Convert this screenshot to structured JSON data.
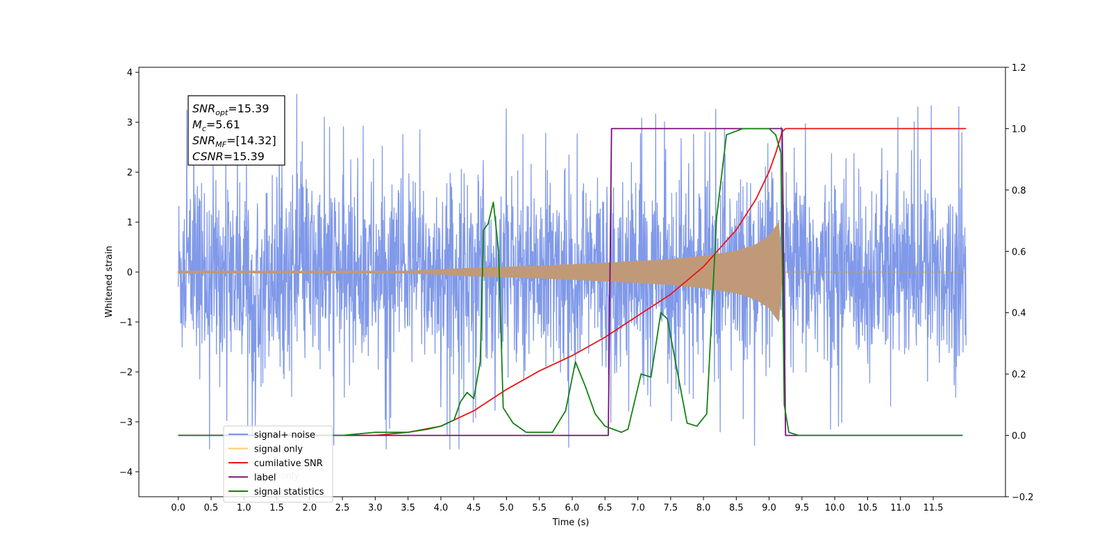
{
  "chart_data": {
    "type": "line",
    "xlabel": "Time (s)",
    "ylabel": "Whitened strain",
    "xlim": [
      -0.6,
      12.6
    ],
    "ylim": [
      -4.5,
      4.1
    ],
    "y2lim": [
      -0.2,
      1.2
    ],
    "x_ticks": [
      0.0,
      0.5,
      1.0,
      1.5,
      2.0,
      2.5,
      3.0,
      3.5,
      4.0,
      4.5,
      5.0,
      5.5,
      6.0,
      6.5,
      7.0,
      7.5,
      8.0,
      8.5,
      9.0,
      9.5,
      10.0,
      10.5,
      11.0,
      11.5
    ],
    "x_tick_labels": [
      "0.0",
      "0.5",
      "1.0",
      "1.5",
      "2.0",
      "2.5",
      "3.0",
      "3.5",
      "4.0",
      "4.5",
      "5.0",
      "5.5",
      "6.0",
      "6.5",
      "7.0",
      "7.5",
      "8.0",
      "8.5",
      "9.0",
      "9.5",
      "10.0",
      "10.5",
      "11.0",
      "11.5"
    ],
    "y_ticks": [
      -4,
      -3,
      -2,
      -1,
      0,
      1,
      2,
      3,
      4
    ],
    "y_tick_labels": [
      "−4",
      "−3",
      "−2",
      "−1",
      "0",
      "1",
      "2",
      "3",
      "4"
    ],
    "y2_ticks": [
      -0.2,
      0.0,
      0.2,
      0.4,
      0.6,
      0.8,
      1.0,
      1.2
    ],
    "y2_tick_labels": [
      "−0.2",
      "0.0",
      "0.2",
      "0.4",
      "0.6",
      "0.8",
      "1.0",
      "1.2"
    ],
    "grid": false,
    "legend_position": "lower-left",
    "annotation": {
      "lines": [
        {
          "label": "SNR",
          "sub": "opt",
          "value": "=15.39"
        },
        {
          "label": "M",
          "sub": "c",
          "value": "=5.61"
        },
        {
          "label": "SNR",
          "sub": "MF",
          "value": "=[14.32]"
        },
        {
          "label": "CSNR",
          "sub": "",
          "value": "=15.39"
        }
      ]
    },
    "series": [
      {
        "name": "signal+ noise",
        "color": "#7994e8",
        "axis": "left",
        "kind": "noise",
        "t_range": [
          0.0,
          12.0
        ],
        "noise_band": [
          -1.6,
          1.6
        ],
        "y_extent": [
          -3.55,
          3.65
        ]
      },
      {
        "name": "signal only",
        "color": "#c09a78",
        "axis": "left",
        "kind": "chirp",
        "envelope": [
          [
            0.0,
            0.02
          ],
          [
            3.5,
            0.02
          ],
          [
            4.5,
            0.08
          ],
          [
            5.5,
            0.12
          ],
          [
            6.5,
            0.18
          ],
          [
            7.5,
            0.25
          ],
          [
            8.0,
            0.32
          ],
          [
            8.5,
            0.42
          ],
          [
            8.8,
            0.55
          ],
          [
            9.0,
            0.72
          ],
          [
            9.15,
            1.0
          ],
          [
            9.2,
            0.0
          ],
          [
            12.0,
            0.0
          ]
        ]
      },
      {
        "name": "cumilative SNR",
        "color": "#ee1111",
        "axis": "right",
        "points": [
          [
            0.0,
            0.0
          ],
          [
            3.0,
            0.0
          ],
          [
            3.5,
            0.01
          ],
          [
            4.0,
            0.03
          ],
          [
            4.5,
            0.08
          ],
          [
            5.0,
            0.15
          ],
          [
            5.5,
            0.21
          ],
          [
            6.0,
            0.26
          ],
          [
            6.5,
            0.32
          ],
          [
            7.0,
            0.39
          ],
          [
            7.5,
            0.46
          ],
          [
            8.0,
            0.55
          ],
          [
            8.5,
            0.67
          ],
          [
            8.8,
            0.77
          ],
          [
            9.0,
            0.86
          ],
          [
            9.1,
            0.92
          ],
          [
            9.2,
            0.99
          ],
          [
            9.25,
            1.0
          ],
          [
            12.0,
            1.0
          ]
        ]
      },
      {
        "name": "label",
        "color": "#7b0c7b",
        "axis": "right",
        "points": [
          [
            0.0,
            0.0
          ],
          [
            6.55,
            0.0
          ],
          [
            6.6,
            1.0
          ],
          [
            9.2,
            1.0
          ],
          [
            9.25,
            0.0
          ],
          [
            11.95,
            0.0
          ]
        ]
      },
      {
        "name": "signal statistics",
        "color": "#138113",
        "axis": "right",
        "points": [
          [
            0.0,
            0.0
          ],
          [
            2.5,
            0.0
          ],
          [
            3.0,
            0.01
          ],
          [
            3.5,
            0.01
          ],
          [
            3.8,
            0.02
          ],
          [
            4.0,
            0.03
          ],
          [
            4.2,
            0.05
          ],
          [
            4.3,
            0.11
          ],
          [
            4.4,
            0.14
          ],
          [
            4.5,
            0.12
          ],
          [
            4.6,
            0.24
          ],
          [
            4.65,
            0.67
          ],
          [
            4.72,
            0.69
          ],
          [
            4.8,
            0.76
          ],
          [
            4.88,
            0.6
          ],
          [
            4.95,
            0.09
          ],
          [
            5.1,
            0.04
          ],
          [
            5.3,
            0.01
          ],
          [
            5.7,
            0.01
          ],
          [
            5.9,
            0.08
          ],
          [
            6.05,
            0.24
          ],
          [
            6.2,
            0.16
          ],
          [
            6.35,
            0.07
          ],
          [
            6.5,
            0.03
          ],
          [
            6.75,
            0.01
          ],
          [
            6.85,
            0.02
          ],
          [
            7.05,
            0.2
          ],
          [
            7.2,
            0.19
          ],
          [
            7.35,
            0.4
          ],
          [
            7.45,
            0.38
          ],
          [
            7.6,
            0.21
          ],
          [
            7.75,
            0.04
          ],
          [
            7.9,
            0.03
          ],
          [
            8.05,
            0.07
          ],
          [
            8.2,
            0.71
          ],
          [
            8.35,
            0.98
          ],
          [
            8.6,
            1.0
          ],
          [
            9.0,
            1.0
          ],
          [
            9.1,
            0.98
          ],
          [
            9.18,
            0.92
          ],
          [
            9.23,
            0.1
          ],
          [
            9.3,
            0.01
          ],
          [
            9.45,
            0.0
          ],
          [
            11.95,
            0.0
          ]
        ]
      }
    ],
    "legend_entries": [
      {
        "name": "signal+ noise",
        "color": "#7994e8"
      },
      {
        "name": "signal only",
        "color": "#ffc970"
      },
      {
        "name": "cumilative SNR",
        "color": "#ee1111"
      },
      {
        "name": "label",
        "color": "#7b0c7b"
      },
      {
        "name": "signal statistics",
        "color": "#138113"
      }
    ],
    "ghost_text": "label only"
  }
}
